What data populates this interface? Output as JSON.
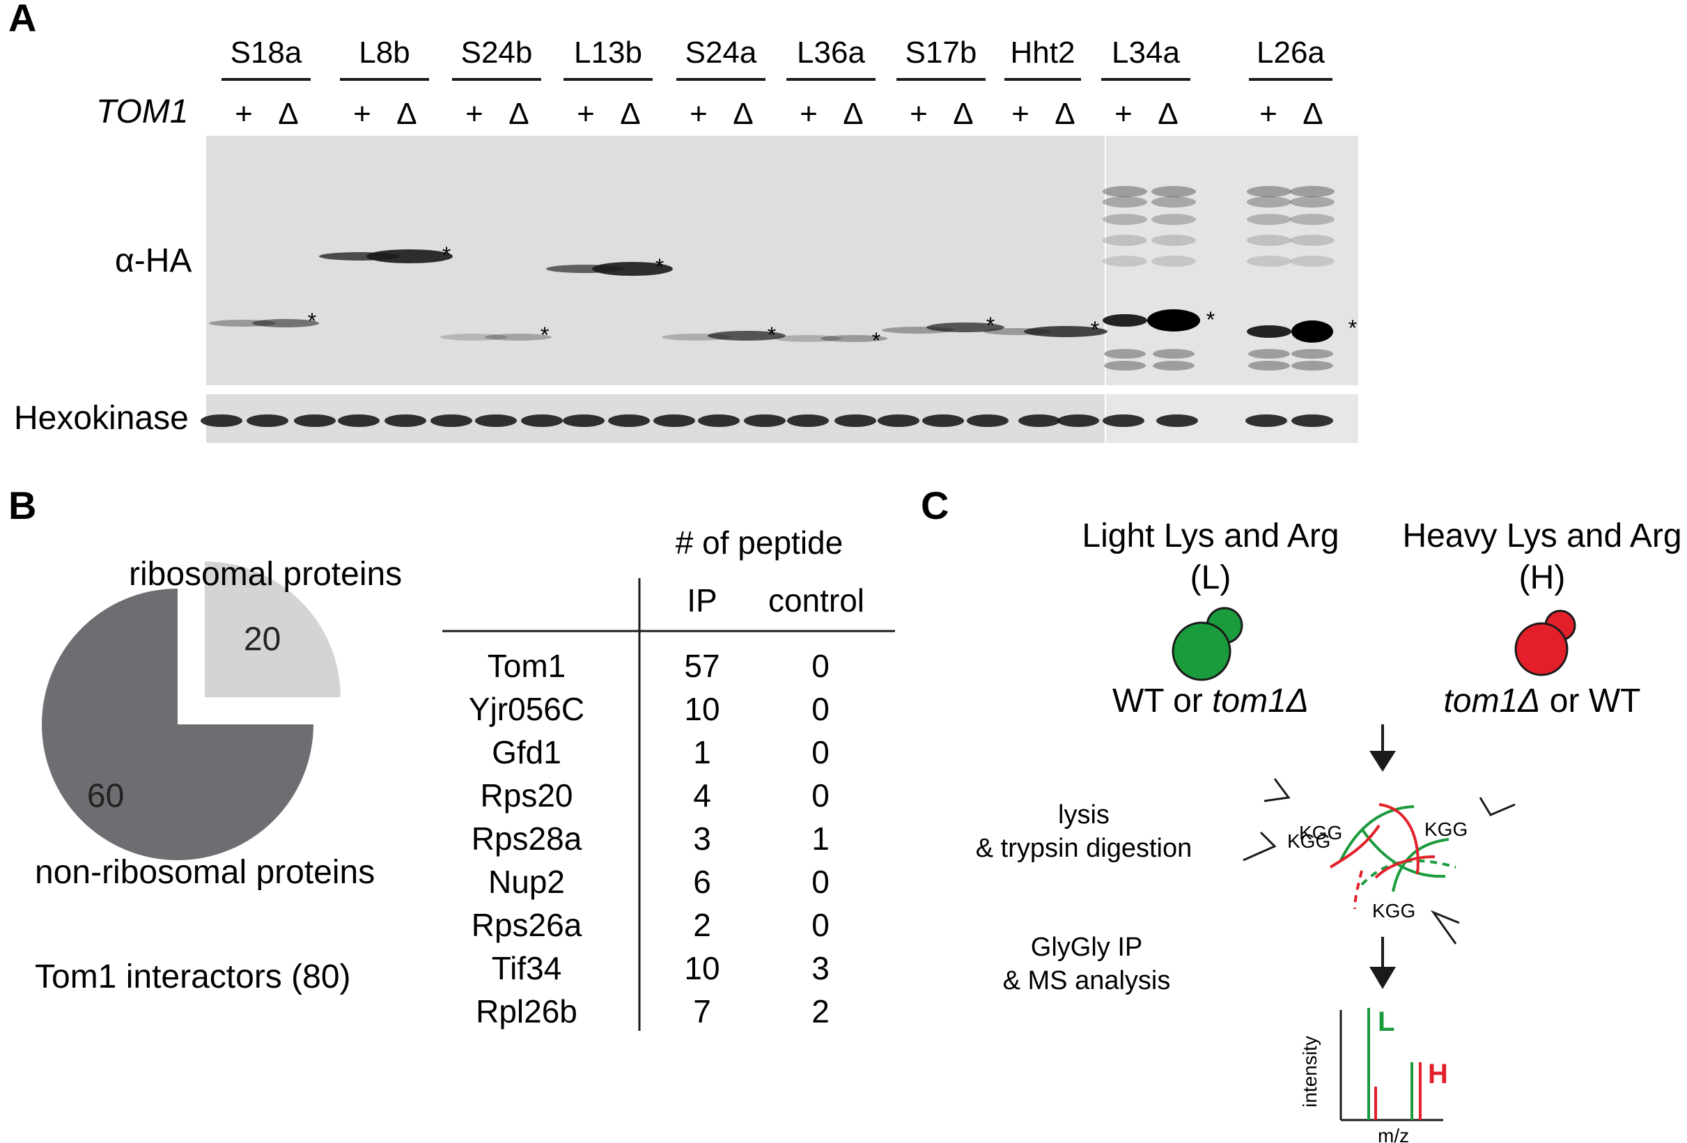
{
  "panel_a": {
    "letter": "A",
    "genotype_label": "TOM1",
    "antibody_label": "α-HA",
    "loading_label": "Hexokinase",
    "plus": "+",
    "delta": "Δ",
    "asterisk": "*",
    "samples": [
      "S18a",
      "L8b",
      "S24b",
      "L13b",
      "S24a",
      "L36a",
      "S17b",
      "Hht2",
      "L34a",
      "L26a"
    ]
  },
  "panel_b": {
    "letter": "B",
    "pie": {
      "title": "Tom1 interactors (80)",
      "slices": [
        {
          "label": "ribosomal proteins",
          "value": 20,
          "color": "#d4d4d5"
        },
        {
          "label": "non-ribosomal proteins",
          "value": 60,
          "color": "#6d6e71"
        }
      ]
    },
    "table": {
      "super_header": "# of peptide",
      "columns": [
        "IP",
        "control"
      ],
      "rows": [
        {
          "protein": "Tom1",
          "ip": "57",
          "control": "0"
        },
        {
          "protein": "Yjr056C",
          "ip": "10",
          "control": "0"
        },
        {
          "protein": "Gfd1",
          "ip": "1",
          "control": "0"
        },
        {
          "protein": "Rps20",
          "ip": "4",
          "control": "0"
        },
        {
          "protein": "Rps28a",
          "ip": "3",
          "control": "1"
        },
        {
          "protein": "Nup2",
          "ip": "6",
          "control": "0"
        },
        {
          "protein": "Rps26a",
          "ip": "2",
          "control": "0"
        },
        {
          "protein": "Tif34",
          "ip": "10",
          "control": "3"
        },
        {
          "protein": "Rpl26b",
          "ip": "7",
          "control": "2"
        }
      ]
    }
  },
  "panel_c": {
    "letter": "C",
    "light_title": "Light Lys and Arg",
    "light_abbr": "(L)",
    "light_strain_prefix": "WT or ",
    "light_strain_gene": "tom1Δ",
    "light_color": "#1a9b3c",
    "heavy_title": "Heavy Lys and Arg",
    "heavy_abbr": "(H)",
    "heavy_strain_gene": "tom1Δ",
    "heavy_strain_suffix": " or WT",
    "heavy_color": "#e3202a",
    "step1_line1": "lysis",
    "step1_line2": "& trypsin digestion",
    "step2_line1": "GlyGly IP",
    "step2_line2": "& MS analysis",
    "kgg": "KGG",
    "spectrum": {
      "ylabel": "intensity",
      "xlabel": "m/z",
      "light_tag": "L",
      "heavy_tag": "H"
    }
  }
}
